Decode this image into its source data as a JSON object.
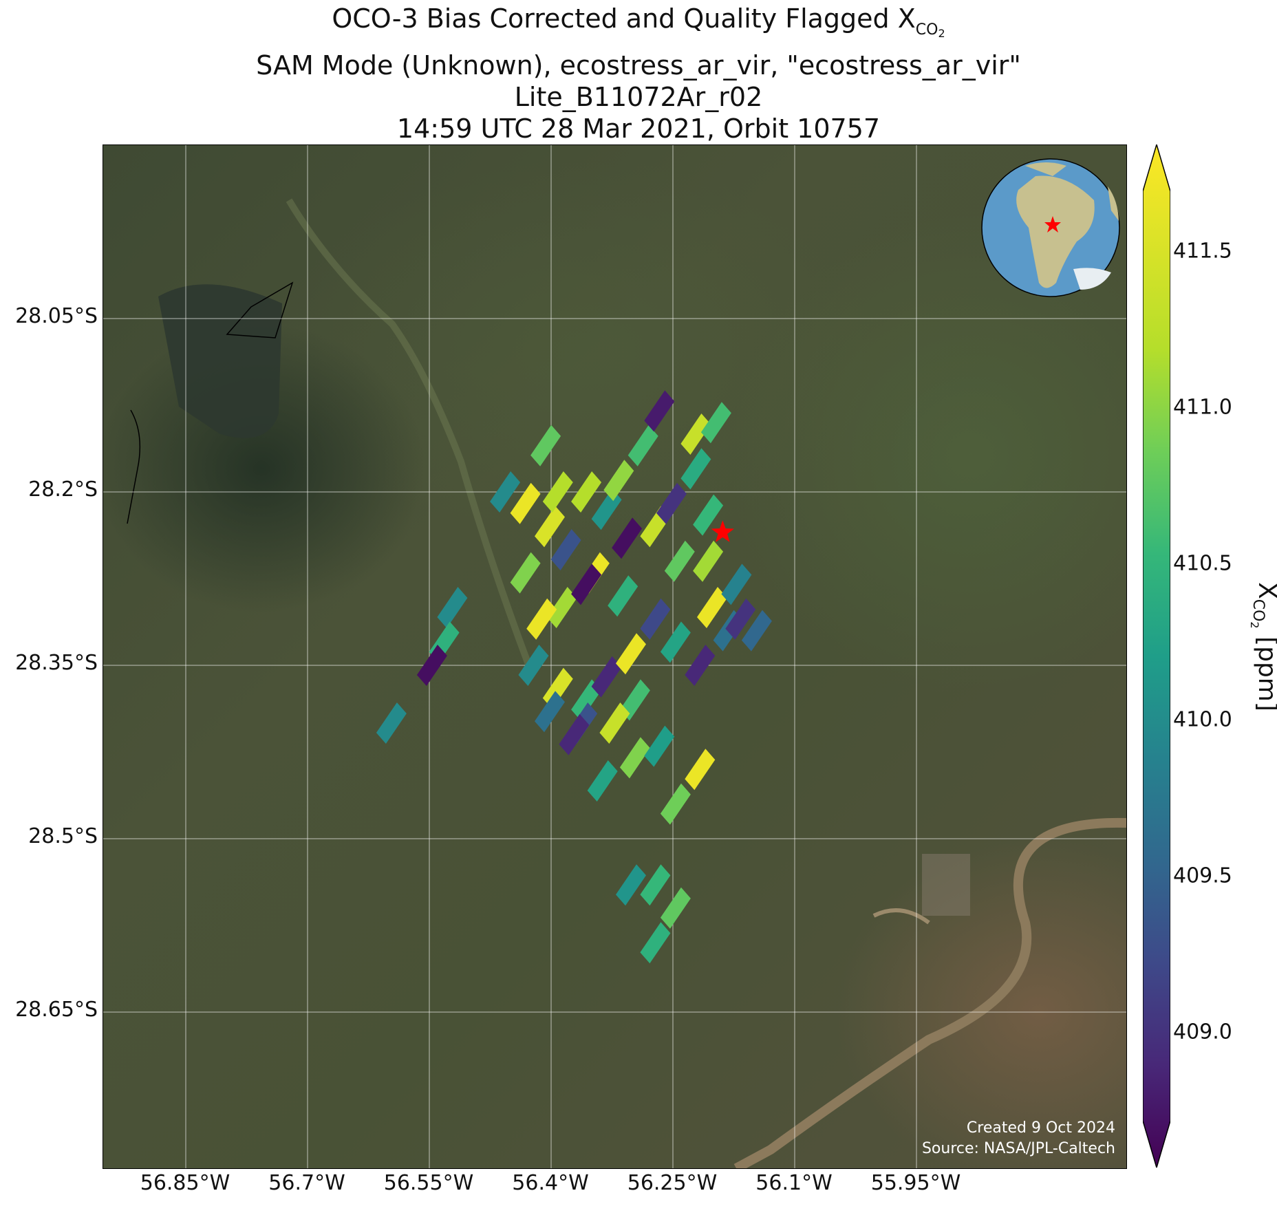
{
  "title": {
    "line1_main": "OCO-3 Bias Corrected and Quality Flagged X",
    "line1_sub": "CO",
    "line1_sub2": "2",
    "line2": "SAM Mode (Unknown), ecostress_ar_vir, \"ecostress_ar_vir\"",
    "line3": "Lite_B11072Ar_r02",
    "line4": "14:59 UTC 28 Mar 2021, Orbit 10757"
  },
  "colorbar": {
    "label_main": "X",
    "label_sub": "CO",
    "label_sub2": "2",
    "label_unit": " [ppm]",
    "ticks": [
      "411.5",
      "411.0",
      "410.5",
      "410.0",
      "409.5",
      "409.0"
    ],
    "colormap": "viridis",
    "extend": "both"
  },
  "credits": {
    "created": "Created 9 Oct 2024",
    "source": "Source: NASA/JPL-Caltech"
  },
  "chart_data": {
    "type": "map",
    "projection": "geographic",
    "basemap": "satellite imagery",
    "lon_ticks": [
      "56.85°W",
      "56.7°W",
      "56.55°W",
      "56.4°W",
      "56.25°W",
      "56.1°W",
      "55.95°W"
    ],
    "lat_ticks": [
      "28.05°S",
      "28.2°S",
      "28.35°S",
      "28.5°S",
      "28.65°S"
    ],
    "target_marker": {
      "symbol": "red-star",
      "lat": -28.235,
      "lon": -56.187
    },
    "inset_globe": {
      "region": "South America",
      "marker": "red-star"
    },
    "soundings": [
      {
        "lat": -28.2,
        "lon": -56.355,
        "xco2": 411.3
      },
      {
        "lat": -28.215,
        "lon": -56.33,
        "xco2": 410.0
      },
      {
        "lat": -28.19,
        "lon": -56.315,
        "xco2": 411.1
      },
      {
        "lat": -28.16,
        "lon": -56.285,
        "xco2": 410.6
      },
      {
        "lat": -28.24,
        "lon": -56.305,
        "xco2": 408.7
      },
      {
        "lat": -28.25,
        "lon": -56.38,
        "xco2": 409.3
      },
      {
        "lat": -28.27,
        "lon": -56.345,
        "xco2": 411.6
      },
      {
        "lat": -28.29,
        "lon": -56.31,
        "xco2": 410.4
      },
      {
        "lat": -28.31,
        "lon": -56.27,
        "xco2": 409.2
      },
      {
        "lat": -28.33,
        "lon": -56.245,
        "xco2": 410.2
      },
      {
        "lat": -28.23,
        "lon": -56.27,
        "xco2": 411.4
      },
      {
        "lat": -28.26,
        "lon": -56.24,
        "xco2": 410.8
      },
      {
        "lat": -28.21,
        "lon": -56.25,
        "xco2": 409.0
      },
      {
        "lat": -28.18,
        "lon": -56.22,
        "xco2": 410.3
      },
      {
        "lat": -28.22,
        "lon": -56.205,
        "xco2": 410.5
      },
      {
        "lat": -28.26,
        "lon": -56.205,
        "xco2": 411.2
      },
      {
        "lat": -28.3,
        "lon": -56.2,
        "xco2": 411.6
      },
      {
        "lat": -28.32,
        "lon": -56.18,
        "xco2": 409.6
      },
      {
        "lat": -28.35,
        "lon": -56.215,
        "xco2": 408.9
      },
      {
        "lat": -28.13,
        "lon": -56.265,
        "xco2": 408.8
      },
      {
        "lat": -28.15,
        "lon": -56.22,
        "xco2": 411.4
      },
      {
        "lat": -28.14,
        "lon": -56.195,
        "xco2": 410.6
      },
      {
        "lat": -28.31,
        "lon": -56.165,
        "xco2": 409.0
      },
      {
        "lat": -28.32,
        "lon": -56.145,
        "xco2": 409.5
      },
      {
        "lat": -28.28,
        "lon": -56.17,
        "xco2": 409.8
      },
      {
        "lat": -28.2,
        "lon": -56.455,
        "xco2": 409.9
      },
      {
        "lat": -28.21,
        "lon": -56.43,
        "xco2": 411.6
      },
      {
        "lat": -28.23,
        "lon": -56.4,
        "xco2": 411.5
      },
      {
        "lat": -28.2,
        "lon": -56.39,
        "xco2": 411.3
      },
      {
        "lat": -28.16,
        "lon": -56.405,
        "xco2": 410.8
      },
      {
        "lat": -28.27,
        "lon": -56.43,
        "xco2": 411.0
      },
      {
        "lat": -28.3,
        "lon": -56.385,
        "xco2": 411.2
      },
      {
        "lat": -28.28,
        "lon": -56.355,
        "xco2": 408.7
      },
      {
        "lat": -28.31,
        "lon": -56.41,
        "xco2": 411.6
      },
      {
        "lat": -28.35,
        "lon": -56.42,
        "xco2": 409.9
      },
      {
        "lat": -28.37,
        "lon": -56.39,
        "xco2": 411.5
      },
      {
        "lat": -28.38,
        "lon": -56.355,
        "xco2": 410.5
      },
      {
        "lat": -28.36,
        "lon": -56.33,
        "xco2": 408.9
      },
      {
        "lat": -28.34,
        "lon": -56.3,
        "xco2": 411.6
      },
      {
        "lat": -28.38,
        "lon": -56.295,
        "xco2": 410.6
      },
      {
        "lat": -28.4,
        "lon": -56.32,
        "xco2": 411.4
      },
      {
        "lat": -28.4,
        "lon": -56.36,
        "xco2": 409.3
      },
      {
        "lat": -28.39,
        "lon": -56.4,
        "xco2": 409.6
      },
      {
        "lat": -28.41,
        "lon": -56.37,
        "xco2": 408.9
      },
      {
        "lat": -28.43,
        "lon": -56.295,
        "xco2": 411.0
      },
      {
        "lat": -28.42,
        "lon": -56.265,
        "xco2": 410.1
      },
      {
        "lat": -28.45,
        "lon": -56.335,
        "xco2": 410.2
      },
      {
        "lat": -28.44,
        "lon": -56.215,
        "xco2": 411.6
      },
      {
        "lat": -28.3,
        "lon": -56.52,
        "xco2": 409.9
      },
      {
        "lat": -28.33,
        "lon": -56.53,
        "xco2": 410.4
      },
      {
        "lat": -28.35,
        "lon": -56.545,
        "xco2": 408.7
      },
      {
        "lat": -28.4,
        "lon": -56.595,
        "xco2": 409.9
      },
      {
        "lat": -28.47,
        "lon": -56.245,
        "xco2": 410.9
      },
      {
        "lat": -28.54,
        "lon": -56.3,
        "xco2": 410.0
      },
      {
        "lat": -28.54,
        "lon": -56.27,
        "xco2": 410.5
      },
      {
        "lat": -28.56,
        "lon": -56.245,
        "xco2": 410.8
      },
      {
        "lat": -28.59,
        "lon": -56.27,
        "xco2": 410.4
      }
    ]
  }
}
